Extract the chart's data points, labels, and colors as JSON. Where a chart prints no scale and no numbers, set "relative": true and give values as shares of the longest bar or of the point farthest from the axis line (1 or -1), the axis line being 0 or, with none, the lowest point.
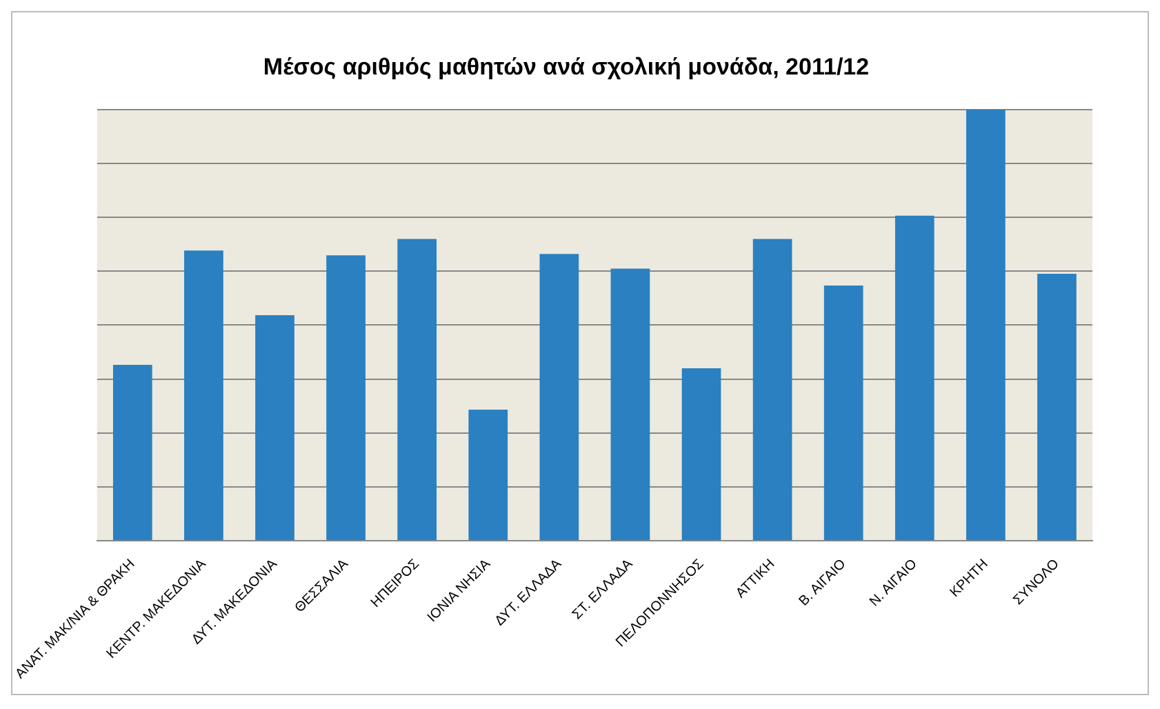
{
  "chart_data": {
    "type": "bar",
    "title": "Μέσος αριθμός μαθητών ανά σχολική μονάδα, 2011/12",
    "categories": [
      "ΑΝΑΤ. ΜΑΚ/ΝΙΑ & ΘΡΑΚΗ",
      "ΚΕΝΤΡ. ΜΑΚΕΔΟΝΙΑ",
      "ΔΥΤ. ΜΑΚΕΔΟΝΙΑ",
      "ΘΕΣΣΑΛΙΑ",
      "ΗΠΕΙΡΟΣ",
      "ΙΟΝΙΑ ΝΗΣΙΑ",
      "ΔΥΤ. ΕΛΛΑΔΑ",
      "ΣΤ. ΕΛΛΑΔΑ",
      "ΠΕΛΟΠΟΝΝΗΣΟΣ",
      "ΑΤΤΙΚΗ",
      "Β. ΑΙΓΑΙΟ",
      "Ν. ΑΙΓΑΙΟ",
      "ΚΡΗΤΗ",
      "ΣΥΝΟΛΟ"
    ],
    "values": [
      0.408,
      0.673,
      0.523,
      0.662,
      0.7,
      0.304,
      0.665,
      0.631,
      0.4,
      0.7,
      0.592,
      0.754,
      1,
      0.619
    ],
    "color": "#2a80c0",
    "relative": true,
    "grid": "y",
    "legend": false
  }
}
